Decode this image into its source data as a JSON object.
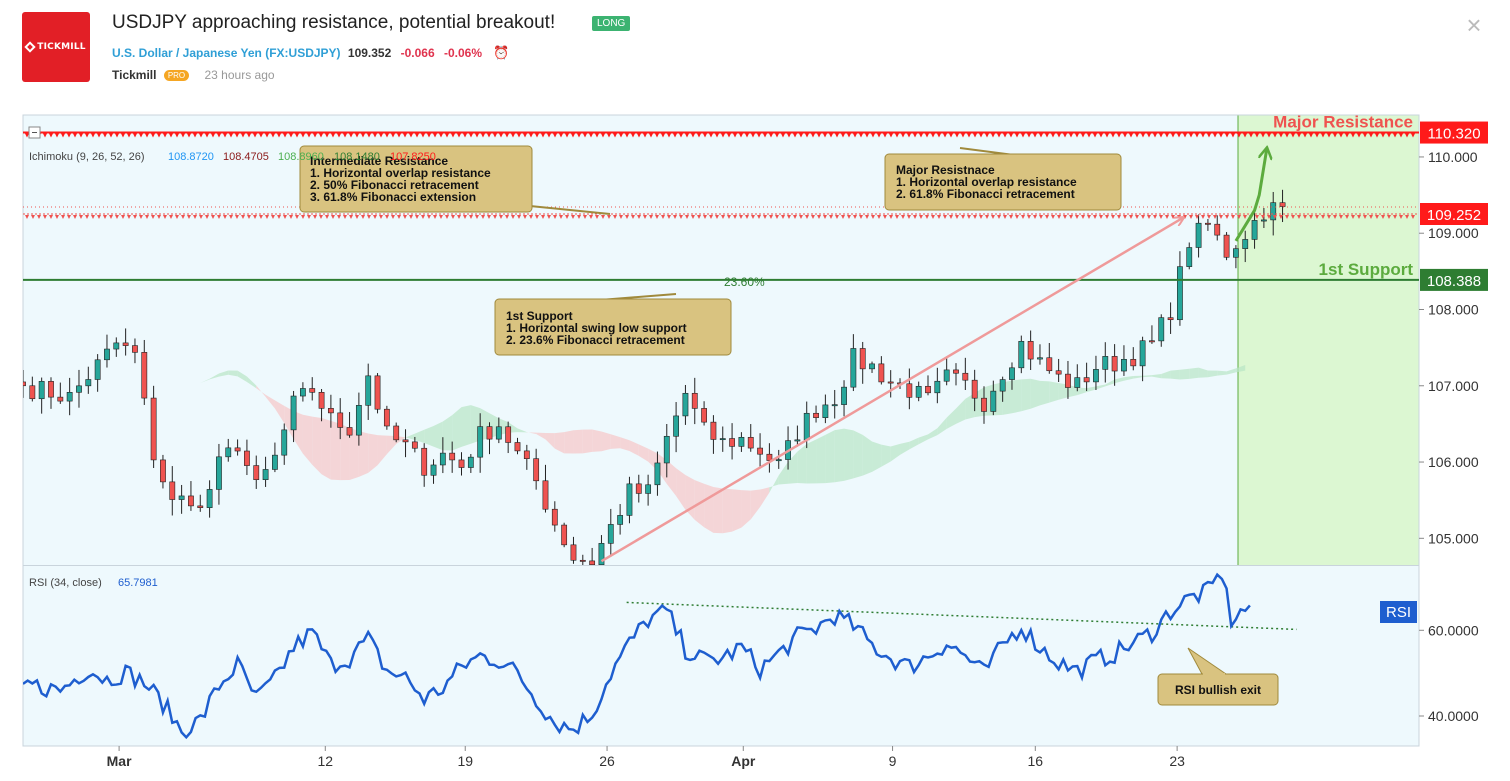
{
  "header": {
    "logo_text": "TICKMILL",
    "title": "USDJPY approaching resistance, potential breakout!",
    "badge": "LONG",
    "symbol_name": "U.S. Dollar / Japanese Yen",
    "symbol_code": "(FX:USDJPY)",
    "price": "109.352",
    "change": "-0.066",
    "change_pct": "-0.06%",
    "author": "Tickmill",
    "author_badge": "PRO",
    "time_ago": "23 hours ago"
  },
  "colors": {
    "up": "#26a69a",
    "down": "#ef5350",
    "resistance": "#ff1a1a",
    "support": "#2e7d32",
    "rsi": "#1e5ecf",
    "annotation_bg": "#d9c380",
    "zone": "#d6f5c8"
  },
  "chart_data": [
    {
      "type": "candlestick",
      "symbol": "FX:USDJPY",
      "ylim": [
        104.65,
        110.55
      ],
      "y_ticks": [
        "105.000",
        "106.000",
        "107.000",
        "108.000",
        "109.000",
        "110.000"
      ],
      "x_ticks": [
        "Mar",
        "12",
        "19",
        "26",
        "Apr",
        "9",
        "16",
        "23"
      ],
      "ichimoku": {
        "label": "Ichimoku (9, 26, 52, 26)",
        "values": [
          "108.8720",
          "108.4705",
          "108.8960",
          "108.1480",
          "107.8250"
        ]
      },
      "levels": [
        {
          "name": "Major Resistance",
          "value": 110.32,
          "label": "110.320",
          "text": "Major Resistance"
        },
        {
          "name": "Intermediate Resistance",
          "value": 109.252,
          "label": "109.252",
          "text": ""
        },
        {
          "name": "1st Support",
          "value": 108.388,
          "label": "108.388",
          "text": "1st Support"
        }
      ],
      "fib_label": "23.60%",
      "annotations": [
        {
          "name": "intermediate-resistance-note",
          "lines": [
            "Intermediate Resistance",
            "1. Horizontal overlap resistance",
            "2. 50% Fibonacci retracement",
            "3. 61.8% Fibonacci extension"
          ]
        },
        {
          "name": "major-resistance-note",
          "lines": [
            "Major Resistnace",
            "1. Horizontal overlap resistance",
            "2. 61.8% Fibonacci retracement"
          ]
        },
        {
          "name": "first-support-note",
          "lines": [
            "1st Support",
            "1. Horizontal swing low support",
            "2. 23.6% Fibonacci retracement"
          ]
        }
      ],
      "close_path": [
        [
          0,
          107.0
        ],
        [
          5,
          106.85
        ],
        [
          10,
          107.55
        ],
        [
          12,
          107.4
        ],
        [
          14,
          106.1
        ],
        [
          16,
          105.45
        ],
        [
          18,
          105.55
        ],
        [
          19,
          105.35
        ],
        [
          21,
          105.95
        ],
        [
          23,
          106.25
        ],
        [
          25,
          105.65
        ],
        [
          27,
          106.05
        ],
        [
          29,
          106.75
        ],
        [
          31,
          106.95
        ],
        [
          33,
          106.55
        ],
        [
          35,
          106.45
        ],
        [
          37,
          107.15
        ],
        [
          39,
          106.35
        ],
        [
          41,
          106.2
        ],
        [
          43,
          105.95
        ],
        [
          45,
          106.1
        ],
        [
          47,
          105.95
        ],
        [
          49,
          106.35
        ],
        [
          51,
          106.5
        ],
        [
          53,
          106.1
        ],
        [
          55,
          105.75
        ],
        [
          57,
          105.2
        ],
        [
          59,
          104.75
        ],
        [
          61,
          104.7
        ],
        [
          63,
          105.15
        ],
        [
          65,
          105.6
        ],
        [
          67,
          105.6
        ],
        [
          69,
          106.3
        ],
        [
          71,
          106.9
        ],
        [
          73,
          106.4
        ],
        [
          75,
          106.25
        ],
        [
          77,
          106.3
        ],
        [
          79,
          106.15
        ],
        [
          81,
          105.95
        ],
        [
          83,
          106.4
        ],
        [
          85,
          106.7
        ],
        [
          87,
          106.85
        ],
        [
          89,
          107.35
        ],
        [
          91,
          107.25
        ],
        [
          93,
          107.05
        ],
        [
          95,
          106.95
        ],
        [
          97,
          106.8
        ],
        [
          99,
          107.1
        ],
        [
          101,
          107.0
        ],
        [
          103,
          106.8
        ],
        [
          105,
          107.2
        ],
        [
          107,
          107.55
        ],
        [
          109,
          107.3
        ],
        [
          111,
          107.1
        ],
        [
          113,
          107.0
        ],
        [
          115,
          107.25
        ],
        [
          117,
          107.3
        ],
        [
          119,
          107.4
        ],
        [
          121,
          107.55
        ],
        [
          123,
          108.0
        ],
        [
          125,
          108.9
        ],
        [
          127,
          109.1
        ],
        [
          129,
          108.75
        ],
        [
          131,
          109.0
        ],
        [
          133,
          109.3
        ],
        [
          135,
          109.35
        ]
      ]
    },
    {
      "type": "line",
      "label": "RSI (34, close)",
      "value_label": "65.7981",
      "badge": "RSI",
      "ylim": [
        33,
        75
      ],
      "y_ticks": [
        "40.0000",
        "60.0000"
      ],
      "annotation": "RSI bullish exit",
      "trendline": [
        [
          64.7,
          66.5
        ],
        [
          136.5,
          60.2
        ]
      ],
      "series": [
        [
          0,
          47.5
        ],
        [
          4,
          46.0
        ],
        [
          7,
          51.0
        ],
        [
          9,
          48.5
        ],
        [
          11,
          50.2
        ],
        [
          13,
          47.8
        ],
        [
          15,
          43.0
        ],
        [
          17,
          36.5
        ],
        [
          19,
          39.0
        ],
        [
          21,
          47.0
        ],
        [
          23,
          52.0
        ],
        [
          25,
          44.0
        ],
        [
          27,
          48.5
        ],
        [
          29,
          56.0
        ],
        [
          31,
          59.5
        ],
        [
          33,
          52.0
        ],
        [
          35,
          53.5
        ],
        [
          37,
          58.0
        ],
        [
          39,
          50.5
        ],
        [
          41,
          49.0
        ],
        [
          43,
          44.0
        ],
        [
          45,
          46.5
        ],
        [
          47,
          51.5
        ],
        [
          49,
          54.0
        ],
        [
          51,
          53.0
        ],
        [
          53,
          50.0
        ],
        [
          55,
          44.0
        ],
        [
          57,
          38.5
        ],
        [
          59,
          37.0
        ],
        [
          61,
          40.5
        ],
        [
          63,
          50.0
        ],
        [
          65,
          57.0
        ],
        [
          67,
          62.5
        ],
        [
          69,
          64.5
        ],
        [
          71,
          55.5
        ],
        [
          73,
          53.0
        ],
        [
          75,
          53.5
        ],
        [
          77,
          56.0
        ],
        [
          79,
          51.0
        ],
        [
          81,
          54.5
        ],
        [
          83,
          58.5
        ],
        [
          85,
          60.5
        ],
        [
          87,
          63.5
        ],
        [
          89,
          61.0
        ],
        [
          91,
          56.5
        ],
        [
          93,
          53.5
        ],
        [
          95,
          51.5
        ],
        [
          97,
          54.0
        ],
        [
          99,
          57.0
        ],
        [
          101,
          54.0
        ],
        [
          103,
          50.0
        ],
        [
          105,
          56.5
        ],
        [
          107,
          61.0
        ],
        [
          109,
          56.0
        ],
        [
          111,
          52.5
        ],
        [
          113,
          50.5
        ],
        [
          115,
          53.0
        ],
        [
          117,
          54.5
        ],
        [
          119,
          57.0
        ],
        [
          121,
          59.5
        ],
        [
          123,
          64.5
        ],
        [
          125,
          67.5
        ],
        [
          127,
          69.0
        ],
        [
          128.5,
          73.5
        ],
        [
          129.5,
          62.5
        ],
        [
          130.5,
          64.0
        ],
        [
          131.5,
          65.8
        ]
      ]
    }
  ]
}
